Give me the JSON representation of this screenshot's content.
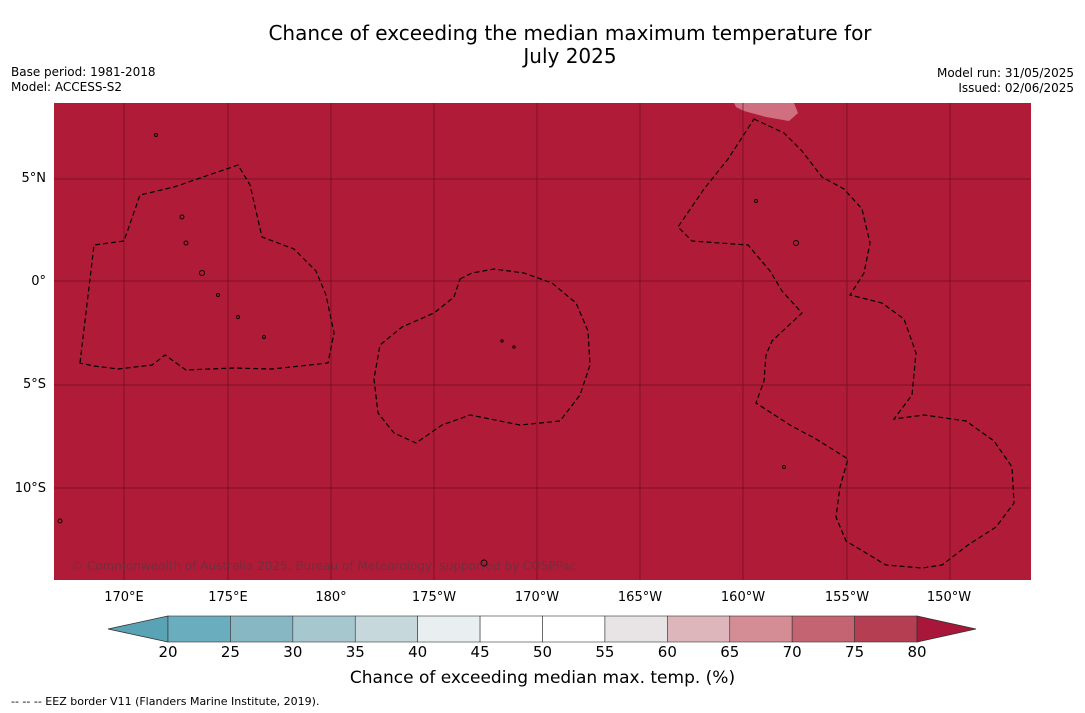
{
  "header": {
    "title_line1": "Chance of exceeding the median maximum temperature for",
    "title_line2": "July 2025",
    "base_period": "Base period: 1981-2018",
    "model": "Model: ACCESS-S2",
    "model_run": "Model run: 31/05/2025",
    "issued": "Issued: 02/06/2025"
  },
  "map": {
    "fill_color": "#b01c38",
    "light_patch_color": "#cf6f7f",
    "lat_labels": [
      {
        "id": "5n",
        "label": "5°N"
      },
      {
        "id": "0",
        "label": "0°"
      },
      {
        "id": "5s",
        "label": "5°S"
      },
      {
        "id": "10s",
        "label": "10°S"
      }
    ],
    "lon_labels": [
      {
        "id": "170e",
        "label": "170°E"
      },
      {
        "id": "175e",
        "label": "175°E"
      },
      {
        "id": "180",
        "label": "180°"
      },
      {
        "id": "175w",
        "label": "175°W"
      },
      {
        "id": "170w",
        "label": "170°W"
      },
      {
        "id": "165w",
        "label": "165°W"
      },
      {
        "id": "160w",
        "label": "160°W"
      },
      {
        "id": "155w",
        "label": "155°W"
      },
      {
        "id": "150w",
        "label": "150°W"
      }
    ],
    "copyright": "© Commonwealth of Australia 2025, Bureau of Meteorology, supported by COSPPac"
  },
  "colorbar": {
    "ticks": [
      "20",
      "25",
      "30",
      "35",
      "40",
      "45",
      "50",
      "55",
      "60",
      "65",
      "70",
      "75",
      "80"
    ],
    "colors": [
      "#6aadbe",
      "#88b7c4",
      "#a6c7cd",
      "#c6d8dc",
      "#e9eef0",
      "#ffffff",
      "#ffffff",
      "#e8e3e4",
      "#ddb6bc",
      "#d48c95",
      "#c46472",
      "#b63e53"
    ],
    "under_color": "#5aa3b4",
    "over_color": "#a8163a",
    "label": "Chance of exceeding median max. temp. (%)"
  },
  "footnote": "--  --  -- EEZ border V11 (Flanders Marine Institute, 2019)."
}
